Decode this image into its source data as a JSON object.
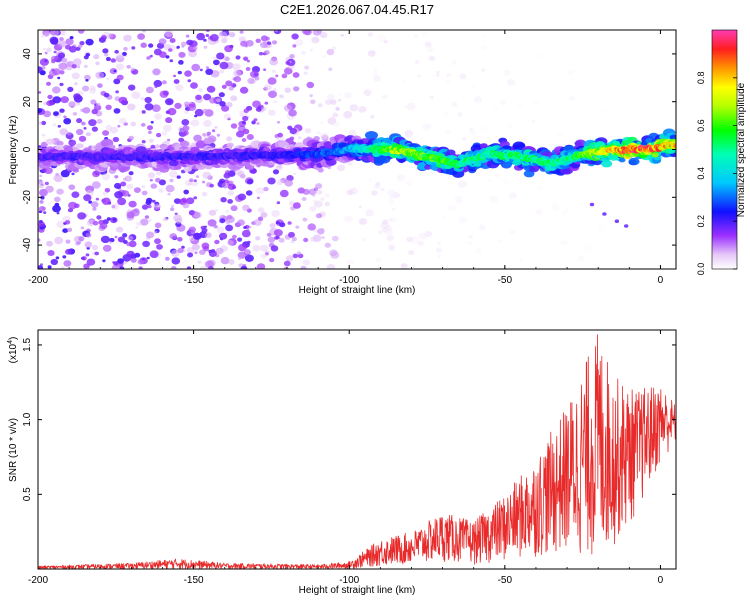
{
  "title": "C2E1.2026.067.04.45.R17",
  "chart_data": [
    {
      "type": "heatmap",
      "xlabel": "Height of straight line (km)",
      "ylabel": "Frequency (Hz)",
      "xlim": [
        -200,
        5
      ],
      "ylim": [
        -50,
        50
      ],
      "x_ticks": [
        -200,
        -150,
        -100,
        -50,
        0
      ],
      "x_tick_labels": [
        "-200",
        "-150",
        "-100",
        "-50",
        "0"
      ],
      "y_ticks": [
        40,
        20,
        0,
        -20,
        -40
      ],
      "y_tick_labels": [
        "40",
        "20",
        "0",
        "-20",
        "-40"
      ],
      "colorbar": {
        "label": "Normalized spectral amplitude",
        "range": [
          0,
          1
        ],
        "ticks": [
          0,
          0.2,
          0.4,
          0.6,
          0.8
        ],
        "tick_labels": [
          "0.0",
          "0.2",
          "0.4",
          "0.6",
          "0.8"
        ],
        "colormap": "rainbow (white-violet-blue-cyan-green-yellow-orange-red-magenta)"
      },
      "main_trace_frequency_hz": [
        {
          "height_km": -200,
          "frequency_hz": -3
        },
        {
          "height_km": -150,
          "frequency_hz": -3
        },
        {
          "height_km": -110,
          "frequency_hz": -2
        },
        {
          "height_km": -100,
          "frequency_hz": 0
        },
        {
          "height_km": -85,
          "frequency_hz": 0
        },
        {
          "height_km": -75,
          "frequency_hz": -3
        },
        {
          "height_km": -65,
          "frequency_hz": -6
        },
        {
          "height_km": -55,
          "frequency_hz": -2
        },
        {
          "height_km": -45,
          "frequency_hz": -3
        },
        {
          "height_km": -35,
          "frequency_hz": -6
        },
        {
          "height_km": -25,
          "frequency_hz": -2
        },
        {
          "height_km": -15,
          "frequency_hz": 0
        },
        {
          "height_km": -5,
          "frequency_hz": 0
        },
        {
          "height_km": 5,
          "frequency_hz": 2
        }
      ],
      "trace_amplitude": [
        {
          "height_km": -200,
          "amplitude": 0.2
        },
        {
          "height_km": -120,
          "amplitude": 0.22
        },
        {
          "height_km": -100,
          "amplitude": 0.35
        },
        {
          "height_km": -85,
          "amplitude": 0.7
        },
        {
          "height_km": -70,
          "amplitude": 0.6
        },
        {
          "height_km": -60,
          "amplitude": 0.5
        },
        {
          "height_km": -45,
          "amplitude": 0.55
        },
        {
          "height_km": -30,
          "amplitude": 0.5
        },
        {
          "height_km": -15,
          "amplitude": 0.85
        },
        {
          "height_km": -5,
          "amplitude": 0.92
        },
        {
          "height_km": 5,
          "amplitude": 0.8
        }
      ],
      "background_noise_amplitude": [
        {
          "height_km": -200,
          "amplitude": 0.12
        },
        {
          "height_km": -120,
          "amplitude": 0.1
        },
        {
          "height_km": -100,
          "amplitude": 0.03
        },
        {
          "height_km": 5,
          "amplitude": 0.0
        }
      ]
    },
    {
      "type": "line",
      "color": "#e82a2a",
      "xlabel": "Height of straight line (km)",
      "ylabel": "SNR (10 * v/v)",
      "y_multiplier_label": "(x10",
      "y_multiplier_exponent": "4",
      "y_multiplier_close": ")",
      "xlim": [
        -200,
        5
      ],
      "ylim": [
        0,
        1.6
      ],
      "x_ticks": [
        -200,
        -150,
        -100,
        -50,
        0
      ],
      "x_tick_labels": [
        "-200",
        "-150",
        "-100",
        "-50",
        "0"
      ],
      "y_ticks": [
        0.5,
        1.0,
        1.5
      ],
      "y_tick_labels": [
        "0.5",
        "1.0",
        "1.5"
      ],
      "snr_envelope": [
        {
          "height_km": -200,
          "low": 0.0,
          "high": 0.02
        },
        {
          "height_km": -170,
          "low": 0.0,
          "high": 0.04
        },
        {
          "height_km": -155,
          "low": 0.0,
          "high": 0.07
        },
        {
          "height_km": -140,
          "low": 0.0,
          "high": 0.04
        },
        {
          "height_km": -110,
          "low": 0.0,
          "high": 0.03
        },
        {
          "height_km": -100,
          "low": 0.0,
          "high": 0.05
        },
        {
          "height_km": -90,
          "low": 0.02,
          "high": 0.2
        },
        {
          "height_km": -80,
          "low": 0.03,
          "high": 0.25
        },
        {
          "height_km": -70,
          "low": 0.05,
          "high": 0.38
        },
        {
          "height_km": -60,
          "low": 0.03,
          "high": 0.32
        },
        {
          "height_km": -50,
          "low": 0.05,
          "high": 0.5
        },
        {
          "height_km": -40,
          "low": 0.08,
          "high": 0.75
        },
        {
          "height_km": -30,
          "low": 0.1,
          "high": 1.1
        },
        {
          "height_km": -20,
          "low": 0.05,
          "high": 1.6
        },
        {
          "height_km": -15,
          "low": 0.15,
          "high": 1.3
        },
        {
          "height_km": -8,
          "low": 0.35,
          "high": 1.2
        },
        {
          "height_km": 0,
          "low": 0.7,
          "high": 1.25
        },
        {
          "height_km": 5,
          "low": 0.85,
          "high": 1.1
        }
      ]
    }
  ]
}
